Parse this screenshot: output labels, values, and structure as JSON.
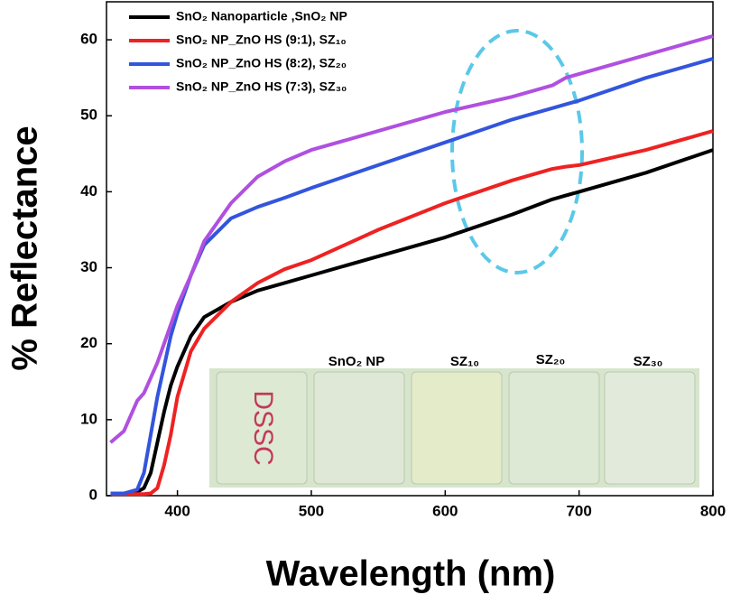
{
  "chart_data": {
    "type": "line",
    "xlabel": "Wavelength (nm)",
    "ylabel": "% Reflectance",
    "x": [
      350,
      360,
      370,
      375,
      380,
      385,
      390,
      395,
      400,
      410,
      420,
      440,
      460,
      480,
      500,
      550,
      600,
      650,
      680,
      690,
      700,
      750,
      800
    ],
    "series": [
      {
        "name": "SnO₂ Nanoparticle ,SnO₂ NP",
        "color": "#000000",
        "values": [
          0.3,
          0.3,
          0.5,
          1,
          3,
          7,
          11,
          14.5,
          17,
          21,
          23.5,
          25.5,
          27,
          28,
          29,
          31.5,
          34,
          37,
          39,
          39.5,
          40,
          42.5,
          45.5
        ]
      },
      {
        "name": "SnO₂ NP_ZnO HS (9:1), SZ₁₀",
        "color": "#ee2222",
        "values": [
          0.2,
          0.2,
          0.2,
          0.2,
          0.3,
          1,
          4,
          8,
          13,
          19,
          22,
          25.5,
          28,
          29.8,
          31,
          35,
          38.5,
          41.5,
          43,
          43.3,
          43.5,
          45.5,
          48
        ]
      },
      {
        "name": "SnO₂ NP_ZnO HS (8:2), SZ₂₀",
        "color": "#3355dd",
        "values": [
          0.3,
          0.3,
          0.8,
          3,
          8,
          13,
          17,
          21,
          24,
          29,
          33,
          36.5,
          38,
          39.2,
          40.5,
          43.5,
          46.5,
          49.5,
          51,
          51.5,
          52,
          55,
          57.5
        ]
      },
      {
        "name": "SnO₂ NP_ZnO HS (7:3), SZ₃₀",
        "color": "#b050e0",
        "values": [
          7,
          8.5,
          12.5,
          13.5,
          15.5,
          17.5,
          20,
          22.5,
          25,
          29,
          33.5,
          38.5,
          42,
          44,
          45.5,
          48,
          50.5,
          52.5,
          54,
          55,
          55.5,
          58,
          60.5
        ]
      }
    ],
    "xlim": [
      347,
      800
    ],
    "ylim": [
      0,
      65
    ],
    "xticks": [
      400,
      500,
      600,
      700,
      800
    ],
    "yticks": [
      0,
      10,
      20,
      30,
      40,
      50,
      60
    ],
    "legend": "upper left"
  },
  "inset": {
    "labels": [
      "SnO₂ NP",
      "SZ₁₀",
      "SZ₂₀",
      "SZ₃₀"
    ],
    "handwriting": "DSSC"
  }
}
